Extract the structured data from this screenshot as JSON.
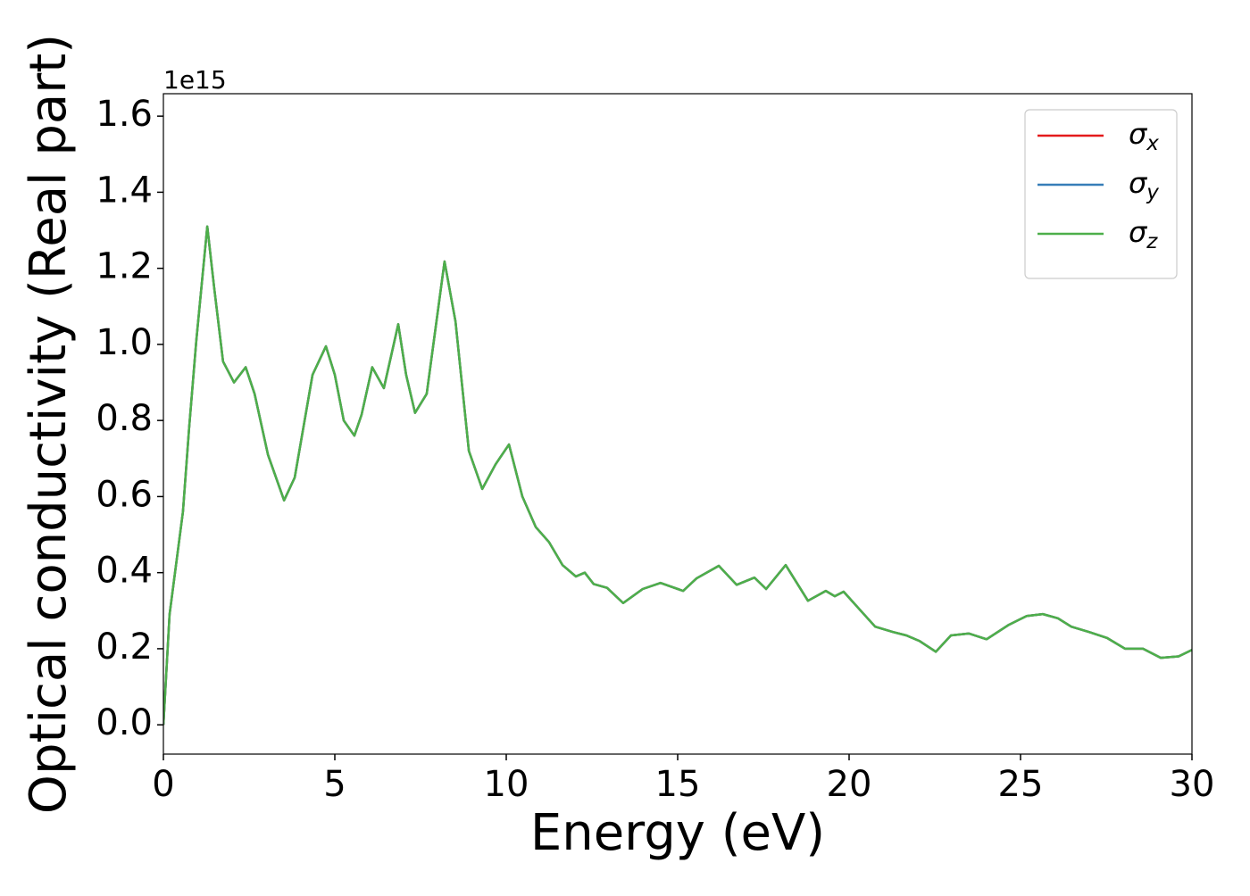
{
  "chart_data": {
    "type": "line",
    "xlabel": "Energy (eV)",
    "ylabel": "Optical conductivity (Real part)",
    "y_offset_text": "1e15",
    "x": [
      0,
      0.18,
      0.44,
      0.57,
      0.75,
      0.96,
      1.28,
      1.48,
      1.74,
      2.06,
      2.4,
      2.66,
      3.05,
      3.52,
      3.83,
      4.35,
      4.74,
      5.0,
      5.26,
      5.57,
      5.78,
      6.09,
      6.43,
      6.85,
      7.08,
      7.34,
      7.68,
      8.2,
      8.52,
      8.91,
      9.3,
      9.69,
      10.08,
      10.47,
      10.86,
      11.25,
      11.64,
      12.03,
      12.29,
      12.55,
      12.94,
      13.41,
      13.98,
      14.5,
      15.16,
      15.55,
      16.2,
      16.72,
      17.24,
      17.58,
      18.15,
      18.8,
      19.32,
      19.58,
      19.84,
      20.36,
      20.76,
      21.28,
      21.67,
      22.06,
      22.53,
      22.97,
      23.49,
      24.01,
      24.66,
      25.18,
      25.65,
      26.09,
      26.48,
      27.0,
      27.53,
      28.05,
      28.57,
      29.09,
      29.61,
      30
    ],
    "series": [
      {
        "name": "σx",
        "color": "#e41a1c",
        "values": [
          0.0,
          0.29,
          0.47,
          0.56,
          0.78,
          1.01,
          1.31,
          1.15,
          0.955,
          0.9,
          0.94,
          0.87,
          0.71,
          0.59,
          0.65,
          0.92,
          0.995,
          0.92,
          0.8,
          0.76,
          0.815,
          0.94,
          0.885,
          1.053,
          0.92,
          0.82,
          0.87,
          1.218,
          1.06,
          0.72,
          0.62,
          0.685,
          0.737,
          0.6,
          0.52,
          0.48,
          0.42,
          0.39,
          0.4,
          0.37,
          0.36,
          0.32,
          0.357,
          0.373,
          0.352,
          0.385,
          0.418,
          0.368,
          0.387,
          0.357,
          0.42,
          0.326,
          0.352,
          0.338,
          0.35,
          0.298,
          0.258,
          0.244,
          0.235,
          0.22,
          0.192,
          0.235,
          0.24,
          0.225,
          0.263,
          0.286,
          0.291,
          0.28,
          0.258,
          0.244,
          0.228,
          0.2,
          0.2,
          0.176,
          0.18,
          0.197
        ]
      },
      {
        "name": "σy",
        "color": "#377eb8",
        "values": [
          0.0,
          0.29,
          0.47,
          0.56,
          0.78,
          1.01,
          1.31,
          1.15,
          0.955,
          0.9,
          0.94,
          0.87,
          0.71,
          0.59,
          0.65,
          0.92,
          0.995,
          0.92,
          0.8,
          0.76,
          0.815,
          0.94,
          0.885,
          1.053,
          0.92,
          0.82,
          0.87,
          1.218,
          1.06,
          0.72,
          0.62,
          0.685,
          0.737,
          0.6,
          0.52,
          0.48,
          0.42,
          0.39,
          0.4,
          0.37,
          0.36,
          0.32,
          0.357,
          0.373,
          0.352,
          0.385,
          0.418,
          0.368,
          0.387,
          0.357,
          0.42,
          0.326,
          0.352,
          0.338,
          0.35,
          0.298,
          0.258,
          0.244,
          0.235,
          0.22,
          0.192,
          0.235,
          0.24,
          0.225,
          0.263,
          0.286,
          0.291,
          0.28,
          0.258,
          0.244,
          0.228,
          0.2,
          0.2,
          0.176,
          0.18,
          0.197
        ]
      },
      {
        "name": "σz",
        "color": "#4daf4a",
        "values": [
          0.0,
          0.29,
          0.47,
          0.56,
          0.78,
          1.01,
          1.31,
          1.15,
          0.955,
          0.9,
          0.94,
          0.87,
          0.71,
          0.59,
          0.65,
          0.92,
          0.995,
          0.92,
          0.8,
          0.76,
          0.815,
          0.94,
          0.885,
          1.053,
          0.92,
          0.82,
          0.87,
          1.218,
          1.06,
          0.72,
          0.62,
          0.685,
          0.737,
          0.6,
          0.52,
          0.48,
          0.42,
          0.39,
          0.4,
          0.37,
          0.36,
          0.32,
          0.357,
          0.373,
          0.352,
          0.385,
          0.418,
          0.368,
          0.387,
          0.357,
          0.42,
          0.326,
          0.352,
          0.338,
          0.35,
          0.298,
          0.258,
          0.244,
          0.235,
          0.22,
          0.192,
          0.235,
          0.24,
          0.225,
          0.263,
          0.286,
          0.291,
          0.28,
          0.258,
          0.244,
          0.228,
          0.2,
          0.2,
          0.176,
          0.18,
          0.197
        ]
      }
    ],
    "xlim": [
      0,
      30
    ],
    "xticks": [
      0,
      5,
      10,
      15,
      20,
      25,
      30
    ],
    "ylim": [
      -0.077,
      1.659
    ],
    "yticks": [
      {
        "value": 0,
        "label": "0.0"
      },
      0.2,
      0.4,
      0.6,
      0.8,
      {
        "value": 1,
        "label": "1.0"
      },
      1.2,
      1.4,
      1.6
    ],
    "grid": false,
    "legend": "upper right"
  }
}
